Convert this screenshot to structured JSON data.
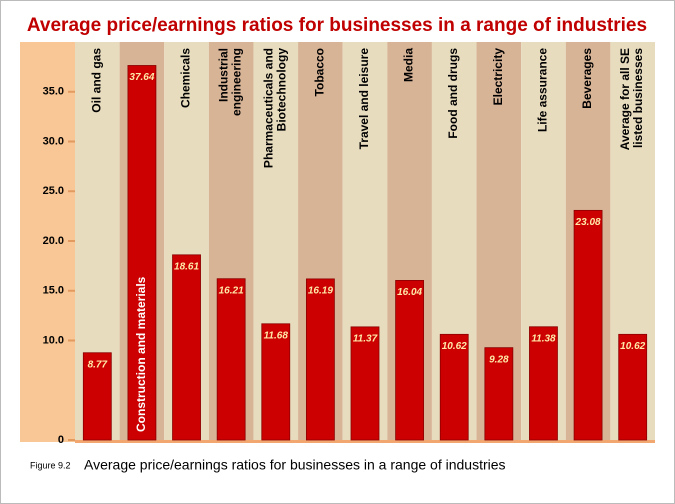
{
  "chart_data": {
    "type": "bar",
    "title": "Average price/earnings ratios for businesses in a range of industries",
    "categories": [
      "Oil and gas",
      "Construction and materials",
      "Chemicals",
      "Industrial\nengineering",
      "Pharmaceuticals and\nBiotechnology",
      "Tobacco",
      "Travel and leisure",
      "Media",
      "Food and drugs",
      "Electricity",
      "Life assurance",
      "Beverages",
      "Average for all SE\nlisted businesses"
    ],
    "values": [
      8.77,
      37.64,
      18.61,
      16.21,
      11.68,
      16.19,
      11.37,
      16.04,
      10.62,
      9.28,
      11.38,
      23.08,
      10.62
    ],
    "color": "#cc0000",
    "ylim": [
      0,
      40
    ],
    "yticks": [
      0,
      {
        "value": 10,
        "label": "10.0"
      },
      {
        "value": 15,
        "label": "15.0"
      },
      {
        "value": 20,
        "label": "20.0"
      },
      {
        "value": 25,
        "label": "25.0"
      },
      {
        "value": 30,
        "label": "30.0"
      },
      {
        "value": 35,
        "label": "35.0"
      }
    ],
    "caption_label": "Figure 9.2",
    "caption": "Average price/earnings ratios for businesses in a range of industries"
  }
}
